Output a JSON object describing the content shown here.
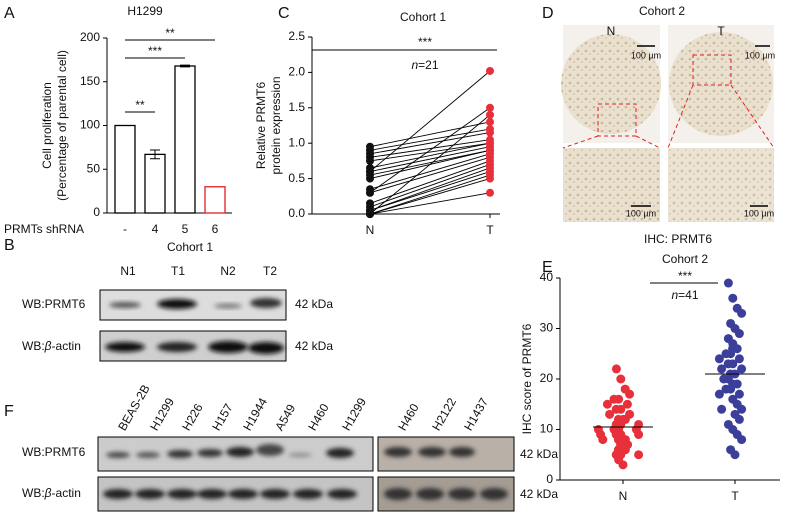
{
  "panel_labels": [
    "A",
    "B",
    "C",
    "D",
    "E",
    "F"
  ],
  "chart_data": [
    {
      "type": "bar",
      "title": "H1299",
      "ylabel": [
        "Cell proliferation",
        "(Percentage of parental cell)"
      ],
      "xlabel": "PRMTs shRNA",
      "categories": [
        "-",
        "4",
        "5",
        "6"
      ],
      "values": [
        100,
        67,
        168,
        30
      ],
      "errors": [
        0,
        5,
        1,
        0
      ],
      "colors": [
        "#000000",
        "#000000",
        "#000000",
        "#e02020"
      ],
      "ylim": [
        0,
        200
      ],
      "yticks": [
        0,
        50,
        100,
        150,
        200
      ],
      "annotations": [
        "**",
        "***",
        "**"
      ]
    },
    {
      "type": "paired",
      "title": "Cohort 1",
      "ylabel": [
        "Relative PRMT6",
        "protein expression"
      ],
      "categories": [
        "N",
        "T"
      ],
      "groups": [
        {
          "color": "#111111",
          "values": [
            0.0,
            0.0,
            0.0,
            0.05,
            0.1,
            0.15,
            0.3,
            0.35,
            0.5,
            0.55,
            0.6,
            0.65,
            0.75,
            0.8,
            0.85,
            0.9,
            0.95,
            0.0,
            0.3,
            0.6,
            0.05
          ]
        },
        {
          "color": "#e8303a",
          "values": [
            0.3,
            0.5,
            0.55,
            0.6,
            0.7,
            0.75,
            0.8,
            0.85,
            0.9,
            0.9,
            0.95,
            1.0,
            1.0,
            1.05,
            1.15,
            1.2,
            1.3,
            1.4,
            1.5,
            2.02,
            0.65
          ]
        }
      ],
      "ylim": [
        0,
        2.5
      ],
      "yticks": [
        {
          "value": 0,
          "label": "0.0"
        },
        0.5,
        {
          "value": 1,
          "label": "1.0"
        },
        1.5,
        {
          "value": 2,
          "label": "2.0"
        },
        2.5
      ],
      "significance": "***",
      "n_label": "n",
      "n_value": "=21"
    },
    {
      "type": "dot",
      "title": "Cohort 2",
      "ylabel": "IHC score of PRMT6",
      "categories": [
        "N",
        "T"
      ],
      "groups": [
        {
          "color": "#e8303a",
          "values": [
            22,
            20,
            18,
            17,
            16,
            16,
            15,
            15,
            14,
            14,
            13,
            13,
            12,
            12,
            12,
            11,
            11,
            11,
            10,
            10,
            10,
            10,
            9,
            9,
            9,
            9,
            8,
            8,
            8,
            8,
            7,
            7,
            7,
            6,
            6,
            6,
            5,
            5,
            5,
            4,
            3
          ],
          "mean": 10.5
        },
        {
          "color": "#3b3f9a",
          "values": [
            39,
            36,
            34,
            33,
            31,
            30,
            29,
            28,
            27,
            26,
            26,
            25,
            25,
            24,
            24,
            23,
            23,
            22,
            22,
            21,
            21,
            20,
            20,
            19,
            19,
            18,
            18,
            17,
            17,
            16,
            15,
            14,
            14,
            13,
            12,
            11,
            10,
            9,
            8,
            6,
            5
          ],
          "mean": 21
        }
      ],
      "ylim": [
        0,
        40
      ],
      "yticks": [
        0,
        10,
        20,
        30,
        40
      ],
      "significance": "***",
      "n_label": "n",
      "n_value": "=41"
    }
  ],
  "ihc": {
    "title": "Cohort 2",
    "columns": [
      "N",
      "T"
    ],
    "scale_bar": "100 µm",
    "caption": "IHC: PRMT6"
  },
  "blot_b": {
    "title": "Cohort 1",
    "lanes": [
      "N1",
      "T1",
      "N2",
      "T2"
    ],
    "rows": [
      [
        "WB:PRMT6"
      ],
      [
        "WB:",
        "β",
        "-actin"
      ]
    ],
    "size": "42 kDa"
  },
  "blot_f": {
    "lanes": [
      "BEAS-2B",
      "H1299",
      "H226",
      "H157",
      "H1944",
      "A549",
      "H460",
      "H1299",
      "H460",
      "H2122",
      "H1437"
    ],
    "rows": [
      [
        "WB:PRMT6"
      ],
      [
        "WB:",
        "β",
        "-actin"
      ]
    ],
    "size": "42 kDa"
  }
}
